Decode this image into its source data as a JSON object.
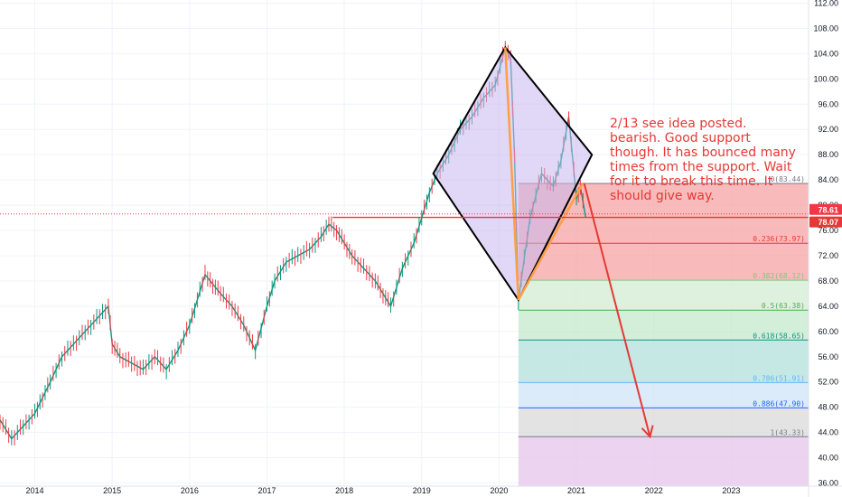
{
  "chart_data": {
    "type": "line",
    "title": "",
    "x_ticks": [
      "2014",
      "2015",
      "2016",
      "2017",
      "2018",
      "2019",
      "2020",
      "2021",
      "2022",
      "2023"
    ],
    "y_ticks": [
      36.0,
      40.0,
      44.0,
      48.0,
      52.0,
      56.0,
      60.0,
      64.0,
      68.0,
      72.0,
      76.0,
      80.0,
      84.0,
      88.0,
      92.0,
      96.0,
      100.0,
      104.0,
      108.0,
      112.0
    ],
    "y_tick_labels": [
      "36.00",
      "40.00",
      "44.00",
      "48.00",
      "52.00",
      "56.00",
      "60.00",
      "64.00",
      "68.00",
      "72.00",
      "76.00",
      "80.00",
      "84.00",
      "88.00",
      "92.00",
      "96.00",
      "100.00",
      "104.00",
      "108.00",
      "112.00"
    ],
    "ylim": [
      35.5,
      112.5
    ],
    "xlim": [
      2013.55,
      2024.0
    ],
    "grid": true,
    "price_series": {
      "name": "",
      "x": [
        2013.55,
        2013.7,
        2013.85,
        2014.0,
        2014.2,
        2014.35,
        2014.5,
        2014.65,
        2014.8,
        2014.95,
        2015.0,
        2015.1,
        2015.25,
        2015.4,
        2015.55,
        2015.7,
        2015.85,
        2016.0,
        2016.2,
        2016.4,
        2016.55,
        2016.7,
        2016.85,
        2017.0,
        2017.1,
        2017.25,
        2017.4,
        2017.55,
        2017.7,
        2017.8,
        2017.9,
        2018.0,
        2018.1,
        2018.25,
        2018.4,
        2018.5,
        2018.6,
        2018.75,
        2018.9,
        2019.0,
        2019.1,
        2019.2,
        2019.35,
        2019.5,
        2019.65,
        2019.8,
        2019.95,
        2020.08,
        2020.15,
        2020.2,
        2020.25,
        2020.4,
        2020.55,
        2020.7,
        2020.8,
        2020.9,
        2021.0,
        2021.05,
        2021.12
      ],
      "values": [
        46,
        43,
        45,
        47,
        52,
        56,
        58,
        60,
        62,
        64,
        58,
        56,
        55,
        54,
        56,
        54,
        57,
        61,
        69,
        66,
        64,
        61,
        57,
        64,
        68,
        71,
        72,
        73,
        75,
        77,
        76,
        74,
        72,
        70,
        68,
        66,
        64,
        70,
        74,
        78,
        82,
        85,
        88,
        92,
        94,
        97,
        99,
        105,
        103,
        88,
        65,
        78,
        85,
        83,
        87,
        94,
        81,
        83,
        78.07
      ]
    },
    "pattern_polygon": {
      "points": [
        [
          2019.15,
          85
        ],
        [
          2020.08,
          105
        ],
        [
          2021.2,
          88
        ],
        [
          2020.25,
          65
        ]
      ]
    },
    "orange_lines": [
      [
        [
          2020.08,
          105
        ],
        [
          2020.25,
          65
        ]
      ],
      [
        [
          2020.25,
          65
        ],
        [
          2021.08,
          83.44
        ]
      ]
    ],
    "horizontal_line": {
      "x_start": 2017.85,
      "value": 78.07,
      "color": "#e53935"
    },
    "projection_arrow": {
      "from": [
        2021.1,
        83.44
      ],
      "to": [
        2021.95,
        43.33
      ],
      "color": "#e53935"
    },
    "fib_levels": [
      {
        "ratio": "0",
        "price": 83.44,
        "label": "0(83.44)",
        "band_color": "#f6a9a9",
        "label_color": "#787b86"
      },
      {
        "ratio": "0.236",
        "price": 73.97,
        "label": "0.236(73.97)",
        "band_color": "#f6a9a9",
        "label_color": "#e53935"
      },
      {
        "ratio": "0.382",
        "price": 68.12,
        "label": "0.382(68.12)",
        "band_color": "#d6eed6",
        "label_color": "#81c784"
      },
      {
        "ratio": "0.5",
        "price": 63.38,
        "label": "0.5(63.38)",
        "band_color": "#c8ead0",
        "label_color": "#4caf50"
      },
      {
        "ratio": "0.618",
        "price": 58.65,
        "label": "0.618(58.65)",
        "band_color": "#b8e2dd",
        "label_color": "#089981"
      },
      {
        "ratio": "0.786",
        "price": 51.91,
        "label": "0.786(51.91)",
        "band_color": "#d2e6f7",
        "label_color": "#64b5f6"
      },
      {
        "ratio": "0.886",
        "price": 47.9,
        "label": "0.886(47.90)",
        "band_color": "#dcdcdc",
        "label_color": "#2962ff"
      },
      {
        "ratio": "1",
        "price": 43.33,
        "label": "1(43.33)",
        "band_color": "#a9a6dc",
        "label_color": "#787b86"
      }
    ],
    "fib_extension_band_color": "#e7c8ec",
    "fib_x_start": 2020.25,
    "price_tags": [
      {
        "value": 78.61,
        "label": "78.61",
        "color": "#f23645"
      },
      {
        "value": 78.07,
        "label": "78.07",
        "color": "#e53935"
      }
    ],
    "dotted_price_line": 78.61,
    "annotation": "2/13 see idea posted. bearish. Good support though. It has bounced many times from the support. Wait for it to break this time. It should give way.",
    "annotation_lines": [
      "2/13 see idea posted.",
      "bearish. Good support",
      "though. It has bounced many",
      "times from the support. Wait",
      "for it to break this time. It",
      "should give way."
    ]
  },
  "colors": {
    "up": "#089981",
    "down": "#f23645",
    "pattern_fill": "#c9b6ee",
    "pattern_stroke": "#000000",
    "orange": "#ff9f43",
    "grid": "#f0f3fa"
  }
}
